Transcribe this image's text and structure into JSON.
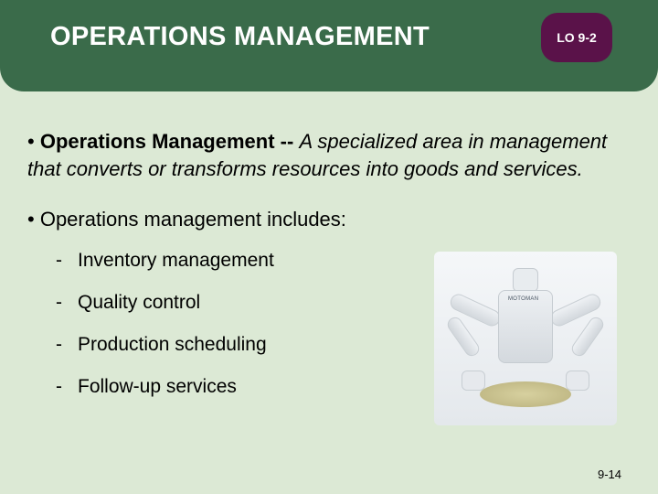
{
  "header": {
    "title": "OPERATIONS MANAGEMENT",
    "lo_badge": "LO 9-2",
    "bg_color": "#3a6b4a",
    "badge_color": "#5a1249",
    "title_color": "#ffffff"
  },
  "slide_bg_color": "#dce9d5",
  "definition": {
    "bullet_prefix": "•",
    "term": "Operations Management --",
    "text": " A specialized area in management that converts or transforms resources into goods and services."
  },
  "includes": {
    "bullet_prefix": "•",
    "lead": "Operations management includes:",
    "items": [
      "Inventory management",
      "Quality control",
      "Production scheduling",
      "Follow-up services"
    ]
  },
  "page_number": "9-14",
  "image": {
    "alt": "robot-holding-object",
    "body_label": "MOTOMAN"
  }
}
